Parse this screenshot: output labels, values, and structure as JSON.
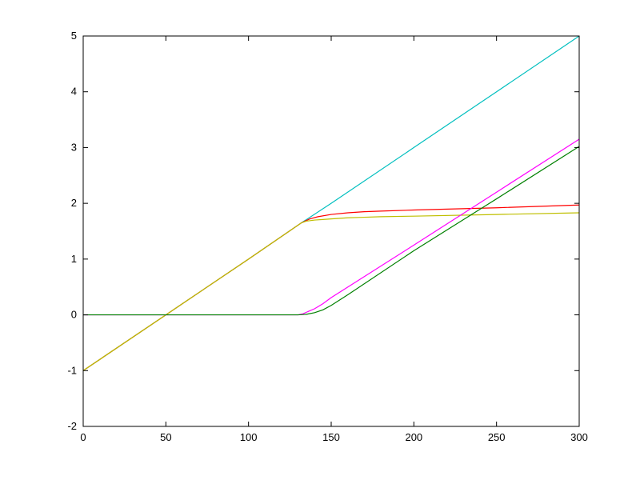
{
  "chart_data": {
    "type": "line",
    "title": "",
    "xlabel": "",
    "ylabel": "",
    "xlim": [
      0,
      300
    ],
    "ylim": [
      -2,
      5
    ],
    "xticks": [
      0,
      50,
      100,
      150,
      200,
      250,
      300
    ],
    "yticks": [
      -2,
      -1,
      0,
      1,
      2,
      3,
      4,
      5
    ],
    "grid": false,
    "legend": "none",
    "series": [
      {
        "color": "#00bfbf",
        "x": [
          0,
          50,
          100,
          132,
          150,
          200,
          250,
          300
        ],
        "y": [
          -1.0,
          0.0,
          1.0,
          1.65,
          2.0,
          3.0,
          4.0,
          5.0
        ]
      },
      {
        "color": "#ff0000",
        "x": [
          0,
          50,
          100,
          132,
          137,
          142,
          150,
          160,
          170,
          180,
          200,
          250,
          300
        ],
        "y": [
          -1.0,
          0.0,
          1.0,
          1.65,
          1.72,
          1.76,
          1.8,
          1.83,
          1.85,
          1.86,
          1.88,
          1.92,
          1.97
        ]
      },
      {
        "color": "#bfbf00",
        "x": [
          0,
          50,
          100,
          132,
          135,
          140,
          145,
          150,
          160,
          170,
          180,
          200,
          250,
          300
        ],
        "y": [
          -1.0,
          0.0,
          1.0,
          1.65,
          1.68,
          1.7,
          1.71,
          1.72,
          1.74,
          1.75,
          1.76,
          1.77,
          1.8,
          1.83
        ]
      },
      {
        "color": "#ff00ff",
        "x": [
          0,
          50,
          100,
          130,
          133,
          136,
          140,
          145,
          150,
          200,
          250,
          300
        ],
        "y": [
          0,
          0,
          0,
          0,
          0.02,
          0.06,
          0.11,
          0.2,
          0.31,
          1.25,
          2.2,
          3.15
        ]
      },
      {
        "color": "#008000",
        "x": [
          0,
          50,
          100,
          130,
          135,
          140,
          145,
          150,
          160,
          200,
          250,
          300
        ],
        "y": [
          0,
          0,
          0,
          0,
          0.01,
          0.04,
          0.09,
          0.17,
          0.36,
          1.15,
          2.08,
          3.02
        ]
      }
    ]
  }
}
